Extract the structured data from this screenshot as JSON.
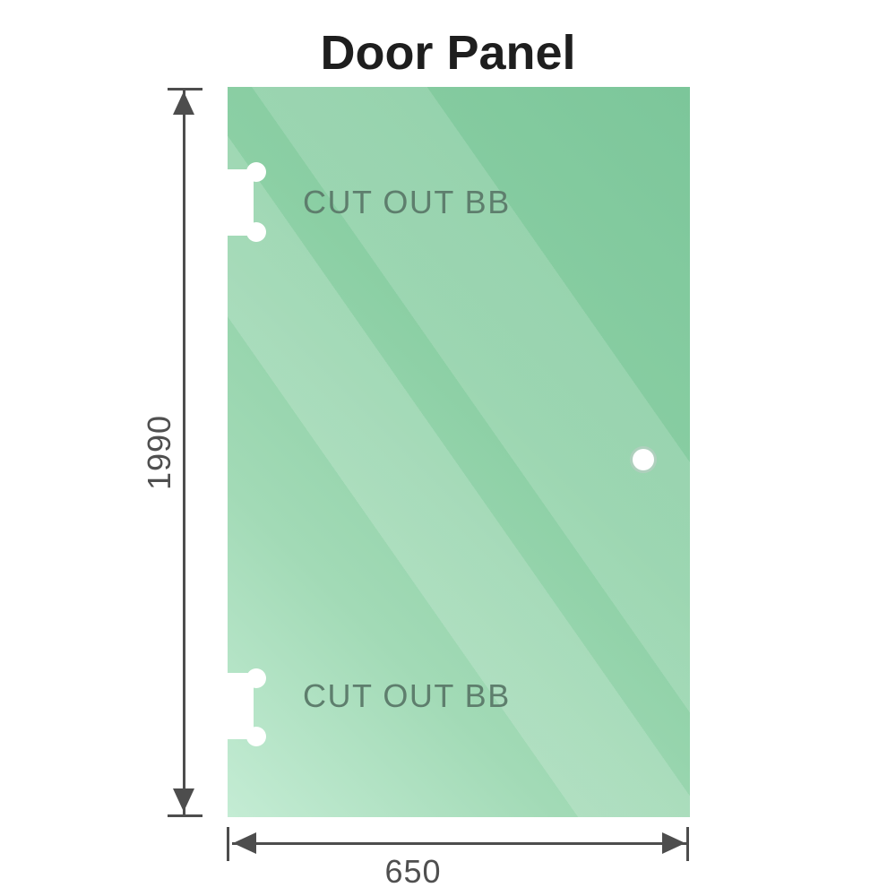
{
  "title": "Door Panel",
  "panel": {
    "cutouts": [
      {
        "label": "CUT OUT BB"
      },
      {
        "label": "CUT OUT BB"
      }
    ],
    "glass_color_dark": "#7cc69a",
    "glass_color_light": "#c4ecd4",
    "cutout_label_color": "#5e7e6d"
  },
  "dimensions": {
    "height": {
      "label": "1990"
    },
    "width": {
      "label": "650"
    },
    "line_color": "#4d4d4d"
  }
}
